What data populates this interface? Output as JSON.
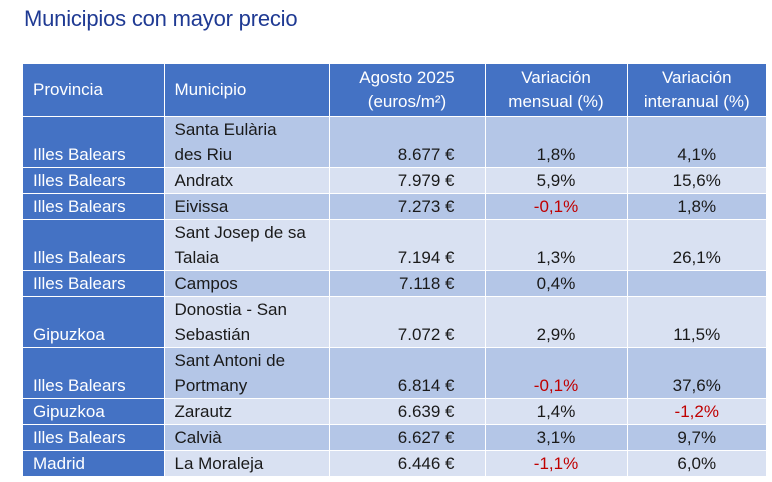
{
  "title": "Municipios con mayor precio",
  "headers": {
    "provincia": "Provincia",
    "municipio": "Municipio",
    "precio_line1": "Agosto 2025",
    "precio_line2": "(euros/m²)",
    "mensual_line1": "Variación",
    "mensual_line2": "mensual (%)",
    "interanual_line1": "Variación",
    "interanual_line2": "interanual (%)"
  },
  "rows": [
    {
      "provincia": "Illes Balears",
      "municipio_lines": [
        "Santa Eulària",
        "des Riu"
      ],
      "precio": "8.677 €",
      "mensual": "1,8%",
      "interanual": "4,1%"
    },
    {
      "provincia": "Illes Balears",
      "municipio_lines": [
        "Andratx"
      ],
      "precio": "7.979 €",
      "mensual": "5,9%",
      "interanual": "15,6%"
    },
    {
      "provincia": "Illes Balears",
      "municipio_lines": [
        "Eivissa"
      ],
      "precio": "7.273 €",
      "mensual": "-0,1%",
      "interanual": "1,8%"
    },
    {
      "provincia": "Illes Balears",
      "municipio_lines": [
        "Sant Josep de sa",
        "Talaia"
      ],
      "precio": "7.194 €",
      "mensual": "1,3%",
      "interanual": "26,1%"
    },
    {
      "provincia": "Illes Balears",
      "municipio_lines": [
        "Campos"
      ],
      "precio": "7.118 €",
      "mensual": "0,4%",
      "interanual": ""
    },
    {
      "provincia": "Gipuzkoa",
      "municipio_lines": [
        "Donostia - San",
        "Sebastián"
      ],
      "precio": "7.072 €",
      "mensual": "2,9%",
      "interanual": "11,5%"
    },
    {
      "provincia": "Illes Balears",
      "municipio_lines": [
        "Sant Antoni de",
        "Portmany"
      ],
      "precio": "6.814 €",
      "mensual": "-0,1%",
      "interanual": "37,6%"
    },
    {
      "provincia": "Gipuzkoa",
      "municipio_lines": [
        "Zarautz"
      ],
      "precio": "6.639 €",
      "mensual": "1,4%",
      "interanual": "-1,2%"
    },
    {
      "provincia": "Illes Balears",
      "municipio_lines": [
        "Calvià"
      ],
      "precio": "6.627 €",
      "mensual": "3,1%",
      "interanual": "9,7%"
    },
    {
      "provincia": "Madrid",
      "municipio_lines": [
        "La Moraleja"
      ],
      "precio": "6.446 €",
      "mensual": "-1,1%",
      "interanual": "6,0%"
    }
  ],
  "colors": {
    "title": "#1f3a93",
    "header_bg": "#4472c4",
    "row_dark": "#b4c6e7",
    "row_light": "#d9e1f2",
    "negative": "#c00000"
  }
}
